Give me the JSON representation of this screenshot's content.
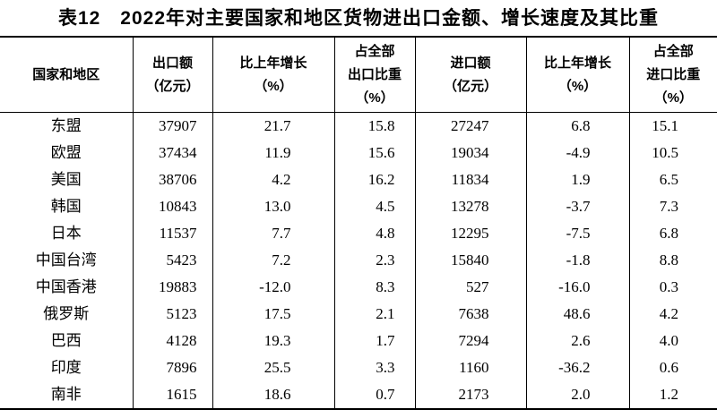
{
  "title": "表12　2022年对主要国家和地区货物进出口金额、增长速度及其比重",
  "table": {
    "columns": [
      {
        "id": "region",
        "lines": [
          "国家和地区"
        ]
      },
      {
        "id": "export_value",
        "lines": [
          "出口额",
          "（亿元）"
        ]
      },
      {
        "id": "export_growth",
        "lines": [
          "比上年增长",
          "（%）"
        ]
      },
      {
        "id": "export_share",
        "lines": [
          "占全部",
          "出口比重",
          "（%）"
        ]
      },
      {
        "id": "import_value",
        "lines": [
          "进口额",
          "（亿元）"
        ]
      },
      {
        "id": "import_growth",
        "lines": [
          "比上年增长",
          "（%）"
        ]
      },
      {
        "id": "import_share",
        "lines": [
          "占全部",
          "进口比重",
          "（%）"
        ]
      }
    ],
    "rows": [
      [
        "东盟",
        "37907",
        "21.7",
        "15.8",
        "27247",
        "6.8",
        "15.1"
      ],
      [
        "欧盟",
        "37434",
        "11.9",
        "15.6",
        "19034",
        "-4.9",
        "10.5"
      ],
      [
        "美国",
        "38706",
        "4.2",
        "16.2",
        "11834",
        "1.9",
        "6.5"
      ],
      [
        "韩国",
        "10843",
        "13.0",
        "4.5",
        "13278",
        "-3.7",
        "7.3"
      ],
      [
        "日本",
        "11537",
        "7.7",
        "4.8",
        "12295",
        "-7.5",
        "6.8"
      ],
      [
        "中国台湾",
        "5423",
        "7.2",
        "2.3",
        "15840",
        "-1.8",
        "8.8"
      ],
      [
        "中国香港",
        "19883",
        "-12.0",
        "8.3",
        "527",
        "-16.0",
        "0.3"
      ],
      [
        "俄罗斯",
        "5123",
        "17.5",
        "2.1",
        "7638",
        "48.6",
        "4.2"
      ],
      [
        "巴西",
        "4128",
        "19.3",
        "1.7",
        "7294",
        "2.6",
        "4.0"
      ],
      [
        "印度",
        "7896",
        "25.5",
        "3.3",
        "1160",
        "-36.2",
        "0.6"
      ],
      [
        "南非",
        "1615",
        "18.6",
        "0.7",
        "2173",
        "2.0",
        "1.2"
      ]
    ]
  },
  "colors": {
    "text": "#000000",
    "background": "#ffffff",
    "border": "#000000"
  }
}
